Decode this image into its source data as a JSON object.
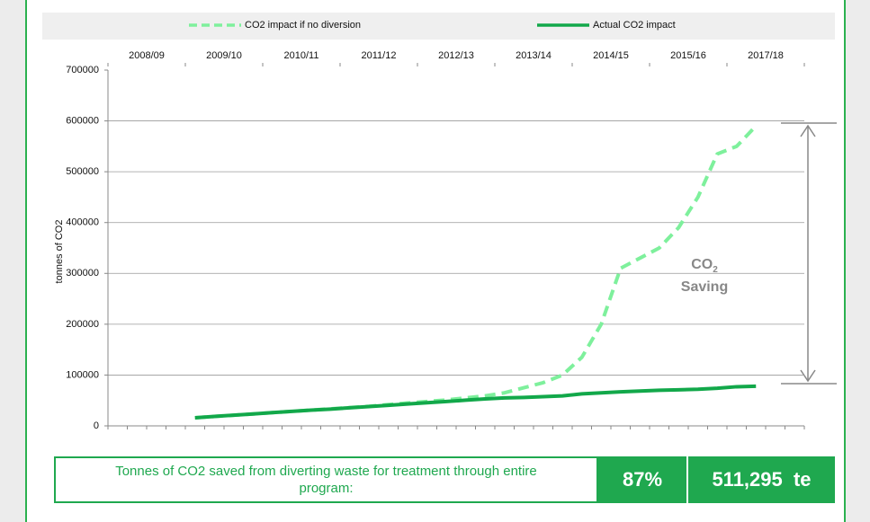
{
  "chart_data": {
    "type": "line",
    "legend": "top",
    "grid": true,
    "y_label": "tonnes of CO2",
    "categories": [
      "2008/09",
      null,
      null,
      null,
      "2009/10",
      null,
      null,
      null,
      "2010/11",
      null,
      null,
      null,
      "2011/12",
      null,
      null,
      null,
      "2012/13",
      null,
      null,
      null,
      "2013/14",
      null,
      null,
      null,
      "2014/15",
      null,
      null,
      null,
      "2015/16",
      null,
      null,
      null,
      "2017/18",
      null,
      null,
      null
    ],
    "ylim": [
      0,
      700000
    ],
    "yticks": [
      0,
      100000,
      200000,
      300000,
      400000,
      500000,
      600000,
      700000
    ],
    "series": [
      {
        "name": "CO2 impact if no diversion",
        "color": "#7ef09c",
        "dashed": true,
        "values": [
          null,
          null,
          null,
          null,
          16000,
          18500,
          21000,
          23500,
          26000,
          28500,
          31000,
          33500,
          36000,
          38500,
          42000,
          45000,
          48000,
          51000,
          55000,
          59000,
          65000,
          75000,
          85000,
          100000,
          135000,
          200000,
          310000,
          330000,
          350000,
          390000,
          450000,
          535000,
          550000,
          590000,
          null,
          null
        ]
      },
      {
        "name": "Actual CO2 impact",
        "color": "#12a84a",
        "dashed": false,
        "values": [
          null,
          null,
          null,
          null,
          16000,
          18500,
          21000,
          23500,
          26000,
          28500,
          31000,
          33000,
          35500,
          38000,
          40500,
          43000,
          45500,
          48000,
          50500,
          53000,
          55000,
          56000,
          57500,
          59000,
          63000,
          65000,
          67000,
          68500,
          70000,
          71000,
          72000,
          74000,
          77000,
          78000,
          null,
          null
        ]
      }
    ],
    "annotation": {
      "text": "CO",
      "subscript": "2",
      "line2": "Saving"
    }
  },
  "summary": {
    "label": "Tonnes of CO2 saved from diverting waste for treatment through entire program:",
    "percent": "87%",
    "total": "511,295  te"
  }
}
